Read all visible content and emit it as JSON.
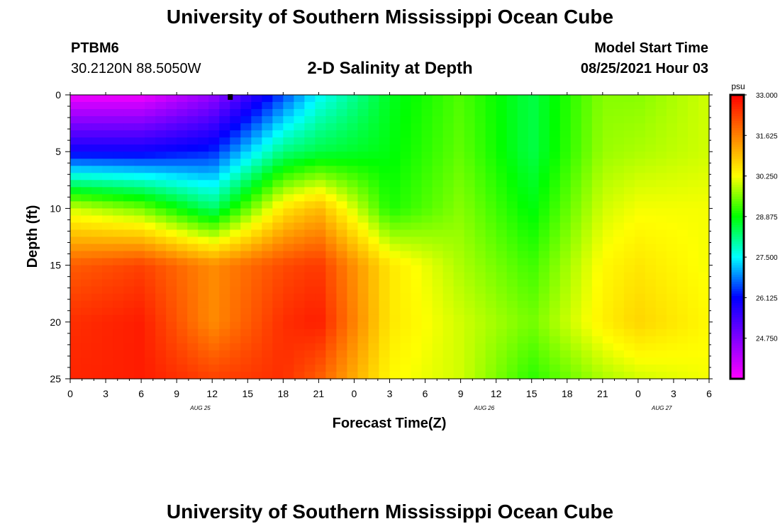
{
  "header": {
    "title": "University of Southern Mississippi Ocean Cube",
    "station_id": "PTBM6",
    "station_coords": "30.2120N  88.5050W",
    "plot_subtitle": "2-D Salinity at Depth",
    "model_start_label": "Model Start Time",
    "model_start_value": "08/25/2021 Hour 03"
  },
  "footer": {
    "title": "University of Southern Mississippi Ocean Cube"
  },
  "chart_data": {
    "type": "heatmap",
    "title": "2-D Salinity at Depth",
    "xlabel": "Forecast Time(Z)",
    "ylabel": "Depth (ft)",
    "x_ticks": [
      "0",
      "3",
      "6",
      "9",
      "12",
      "15",
      "18",
      "21",
      "0",
      "3",
      "6",
      "9",
      "12",
      "15",
      "18",
      "21",
      "0",
      "3",
      "6"
    ],
    "date_labels": [
      {
        "text": "AUG 25",
        "hour": 11
      },
      {
        "text": "AUG 26",
        "hour": 35
      },
      {
        "text": "AUG 27",
        "hour": 50
      }
    ],
    "xlim_hours": [
      0,
      54
    ],
    "ylim_ft": [
      0,
      25
    ],
    "y_ticks": [
      0,
      5,
      10,
      15,
      20,
      25
    ],
    "current_time_marker_hour": 13.5,
    "colorbar": {
      "unit": "psu",
      "min": 23.375,
      "max": 33.0,
      "ticks": [
        "33.000",
        "31.625",
        "30.250",
        "28.875",
        "27.500",
        "26.125",
        "24.750"
      ],
      "tick_values": [
        33.0,
        31.625,
        30.25,
        28.875,
        27.5,
        26.125,
        24.75
      ],
      "colors": [
        "#ff00ff",
        "#8000ff",
        "#0000ff",
        "#00ffff",
        "#00ff00",
        "#ffff00",
        "#ff8000",
        "#ff0000"
      ]
    },
    "salinity_psu_samples": {
      "depths_ft": [
        0,
        5,
        10,
        15,
        20,
        25
      ],
      "hours": [
        0,
        6,
        12,
        18,
        21,
        27,
        33,
        39,
        45,
        48,
        54
      ],
      "values": [
        [
          23.5,
          23.5,
          24.5,
          26.5,
          27.5,
          28.7,
          29.3,
          28.5,
          29.6,
          29.6,
          30.0
        ],
        [
          26.0,
          26.0,
          26.3,
          28.2,
          28.5,
          28.8,
          29.4,
          28.5,
          29.7,
          29.8,
          30.0
        ],
        [
          30.0,
          29.5,
          28.3,
          30.5,
          31.0,
          29.0,
          29.6,
          28.8,
          30.0,
          30.2,
          30.2
        ],
        [
          32.0,
          32.3,
          31.5,
          32.2,
          32.4,
          30.5,
          29.8,
          29.2,
          30.3,
          30.5,
          30.2
        ],
        [
          32.5,
          32.7,
          31.5,
          32.5,
          32.7,
          30.5,
          30.0,
          29.5,
          30.4,
          30.7,
          30.3
        ],
        [
          32.6,
          32.7,
          32.3,
          32.5,
          32.0,
          30.3,
          30.0,
          29.1,
          29.8,
          30.0,
          30.2
        ]
      ]
    }
  }
}
